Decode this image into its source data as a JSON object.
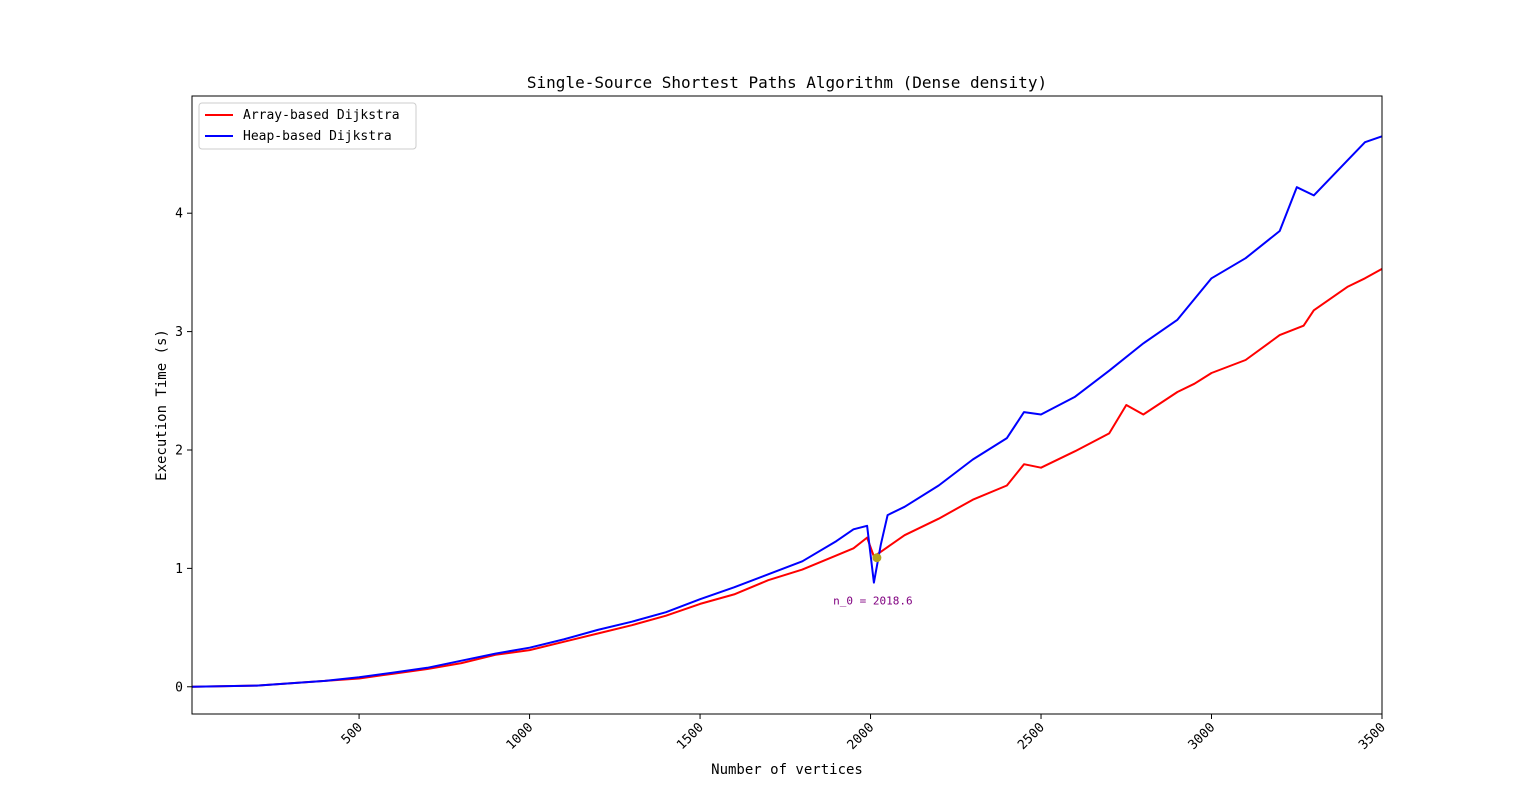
{
  "chart_data": {
    "type": "line",
    "title": "Single-Source Shortest Paths Algorithm (Dense density)",
    "xlabel": "Number of vertices",
    "ylabel": "Execution Time (s)",
    "xlim": [
      10,
      3500
    ],
    "ylim": [
      -0.23,
      4.99
    ],
    "xticks": [
      500,
      1000,
      1500,
      2000,
      2500,
      3000,
      3500
    ],
    "yticks": [
      0,
      1,
      2,
      3,
      4
    ],
    "grid": false,
    "legend": {
      "position": "top-left",
      "entries": [
        "Array-based Dijkstra",
        "Heap-based Dijkstra"
      ]
    },
    "series": [
      {
        "name": "Array-based Dijkstra",
        "color": "#ff0000",
        "x": [
          10,
          200,
          300,
          400,
          500,
          600,
          700,
          800,
          900,
          1000,
          1100,
          1200,
          1300,
          1400,
          1500,
          1600,
          1700,
          1800,
          1900,
          1950,
          1990,
          2010,
          2030,
          2100,
          2200,
          2300,
          2400,
          2450,
          2500,
          2600,
          2700,
          2750,
          2800,
          2900,
          2950,
          3000,
          3100,
          3200,
          3270,
          3300,
          3400,
          3450,
          3500
        ],
        "y": [
          0.0,
          0.01,
          0.03,
          0.05,
          0.07,
          0.11,
          0.15,
          0.2,
          0.27,
          0.31,
          0.38,
          0.45,
          0.52,
          0.6,
          0.7,
          0.78,
          0.9,
          0.99,
          1.11,
          1.17,
          1.26,
          1.1,
          1.14,
          1.28,
          1.42,
          1.58,
          1.7,
          1.88,
          1.85,
          1.99,
          2.14,
          2.38,
          2.3,
          2.49,
          2.56,
          2.65,
          2.76,
          2.97,
          3.05,
          3.18,
          3.38,
          3.45,
          3.53
        ]
      },
      {
        "name": "Heap-based Dijkstra",
        "color": "#0000ff",
        "x": [
          10,
          200,
          300,
          400,
          500,
          600,
          700,
          800,
          900,
          1000,
          1100,
          1200,
          1300,
          1400,
          1500,
          1600,
          1700,
          1800,
          1900,
          1950,
          1990,
          2010,
          2030,
          2050,
          2100,
          2200,
          2300,
          2400,
          2450,
          2500,
          2600,
          2700,
          2800,
          2900,
          3000,
          3100,
          3200,
          3250,
          3300,
          3400,
          3450,
          3500
        ],
        "y": [
          0.0,
          0.01,
          0.03,
          0.05,
          0.08,
          0.12,
          0.16,
          0.22,
          0.28,
          0.33,
          0.4,
          0.48,
          0.55,
          0.63,
          0.74,
          0.84,
          0.95,
          1.06,
          1.23,
          1.33,
          1.36,
          0.88,
          1.2,
          1.45,
          1.52,
          1.7,
          1.92,
          2.1,
          2.32,
          2.3,
          2.45,
          2.67,
          2.9,
          3.1,
          3.45,
          3.62,
          3.85,
          4.22,
          4.15,
          4.45,
          4.6,
          4.65
        ]
      }
    ],
    "annotations": [
      {
        "text": "n_0 = 2018.6",
        "x": 2018.6,
        "y": 1.09,
        "marker_color": "#b5a11c"
      }
    ]
  }
}
